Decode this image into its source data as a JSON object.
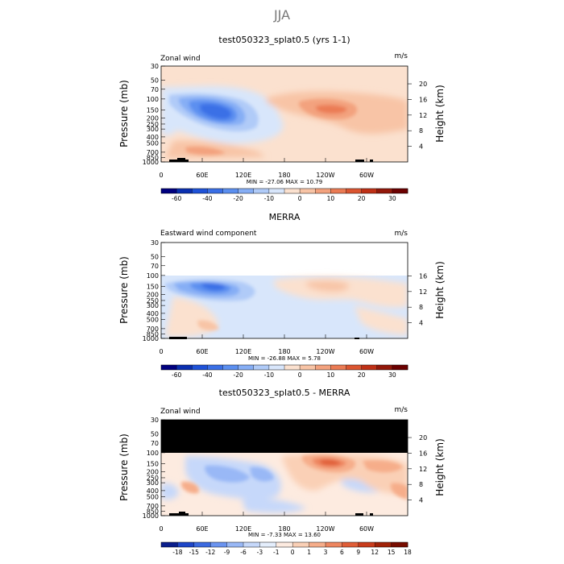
{
  "page_title": "JJA",
  "colors": {
    "ramp": [
      "#00007f",
      "#0a2fb0",
      "#1f52d8",
      "#3a6fe6",
      "#5b8ff0",
      "#86aef5",
      "#b0cbf8",
      "#d8e6fb",
      "#fbe1cf",
      "#f8c4a6",
      "#f3a27e",
      "#eb7b54",
      "#db5530",
      "#bf3016",
      "#93180a",
      "#6b0000"
    ],
    "diff_ramp": [
      "#0a1e8c",
      "#1e46c8",
      "#3c6ae0",
      "#6b94f0",
      "#99b8f6",
      "#c6d8fa",
      "#e4eefc",
      "#fdebe0",
      "#fad0b6",
      "#f6ad8a",
      "#ee8660",
      "#e05e38",
      "#c93c1c",
      "#a12208",
      "#780c00"
    ],
    "black": "#000000"
  },
  "chart_data": [
    {
      "type": "heatmap",
      "panel": "model",
      "title": "test050323_splat0.5 (yrs 1-1)",
      "left_label": "Zonal wind",
      "units": "m/s",
      "ylabel": "Pressure (mb)",
      "ylabel_right": "Height (km)",
      "x_ticks": [
        "0",
        "60E",
        "120E",
        "180",
        "120W",
        "60W"
      ],
      "x_tick_values": [
        0,
        60,
        120,
        180,
        240,
        300
      ],
      "xlim": [
        0,
        360
      ],
      "y_ticks": [
        "30",
        "50",
        "70",
        "100",
        "150",
        "200",
        "250",
        "300",
        "400",
        "500",
        "700",
        "850",
        "1000"
      ],
      "y_tick_values": [
        30,
        50,
        70,
        100,
        150,
        200,
        250,
        300,
        400,
        500,
        700,
        850,
        1000
      ],
      "ylim": [
        1000,
        30
      ],
      "height_ticks": [
        "20",
        "16",
        "12",
        "8",
        "4"
      ],
      "stats": "MIN = -27.06  MAX =  10.79",
      "min": -27.06,
      "max": 10.79,
      "colorbar_labels": [
        "-60",
        "-40",
        "-20",
        "-10",
        "0",
        "10",
        "20",
        "30"
      ],
      "colorbar_levels": [
        -70,
        -60,
        -50,
        -40,
        -30,
        -20,
        -15,
        -10,
        -5,
        0,
        5,
        10,
        15,
        20,
        25,
        30,
        35
      ],
      "features": [
        {
          "lon": 75,
          "p": 150,
          "value": -27
        },
        {
          "lon": 230,
          "p": 130,
          "value": 10.8
        },
        {
          "lon": 30,
          "p": 850,
          "value": 8
        }
      ]
    },
    {
      "type": "heatmap",
      "panel": "reanalysis",
      "title": "MERRA",
      "left_label": "Eastward wind component",
      "units": "m/s",
      "ylabel": "Pressure (mb)",
      "ylabel_right": "Height (km)",
      "x_ticks": [
        "0",
        "60E",
        "120E",
        "180",
        "120W",
        "60W"
      ],
      "x_tick_values": [
        0,
        60,
        120,
        180,
        240,
        300
      ],
      "xlim": [
        0,
        360
      ],
      "y_ticks": [
        "30",
        "50",
        "70",
        "100",
        "150",
        "200",
        "250",
        "300",
        "400",
        "500",
        "700",
        "850",
        "1000"
      ],
      "y_tick_values": [
        30,
        50,
        70,
        100,
        150,
        200,
        250,
        300,
        400,
        500,
        700,
        850,
        1000
      ],
      "ylim": [
        1000,
        30
      ],
      "height_ticks": [
        "16",
        "12",
        "8",
        "4"
      ],
      "stats": "MIN = -26.88  MAX =   5.78",
      "min": -26.88,
      "max": 5.78,
      "colorbar_labels": [
        "-60",
        "-40",
        "-20",
        "-10",
        "0",
        "10",
        "20",
        "30"
      ],
      "colorbar_levels": [
        -70,
        -60,
        -50,
        -40,
        -30,
        -20,
        -15,
        -10,
        -5,
        0,
        5,
        10,
        15,
        20,
        25,
        30,
        35
      ],
      "features": [
        {
          "lon": 80,
          "p": 170,
          "value": -26.9
        },
        {
          "lon": 250,
          "p": 140,
          "value": 5.8
        }
      ]
    },
    {
      "type": "heatmap",
      "panel": "difference",
      "title": "test050323_splat0.5 - MERRA",
      "left_label": "Zonal wind",
      "units": "m/s",
      "ylabel": "Pressure (mb)",
      "ylabel_right": "Height (km)",
      "x_ticks": [
        "0",
        "60E",
        "120E",
        "180",
        "120W",
        "60W"
      ],
      "x_tick_values": [
        0,
        60,
        120,
        180,
        240,
        300
      ],
      "xlim": [
        0,
        360
      ],
      "y_ticks": [
        "30",
        "50",
        "70",
        "100",
        "150",
        "200",
        "250",
        "300",
        "400",
        "500",
        "700",
        "850",
        "1000"
      ],
      "y_tick_values": [
        30,
        50,
        70,
        100,
        150,
        200,
        250,
        300,
        400,
        500,
        700,
        850,
        1000
      ],
      "ylim": [
        1000,
        30
      ],
      "height_ticks": [
        "20",
        "16",
        "12",
        "8",
        "4"
      ],
      "stats": "MIN =  -7.33  MAX =  13.60",
      "min": -7.33,
      "max": 13.6,
      "colorbar_labels": [
        "-18",
        "-15",
        "-12",
        "-9",
        "-6",
        "-3",
        "-1",
        "0",
        "1",
        "3",
        "6",
        "9",
        "12",
        "15",
        "18"
      ],
      "colorbar_levels": [
        -21,
        -18,
        -15,
        -12,
        -9,
        -6,
        -3,
        -1,
        0,
        1,
        3,
        6,
        9,
        12,
        15,
        18,
        21
      ],
      "features": [
        {
          "lon": 230,
          "p": 180,
          "value": 13.6
        },
        {
          "lon": 110,
          "p": 300,
          "value": -7.3
        }
      ]
    }
  ]
}
